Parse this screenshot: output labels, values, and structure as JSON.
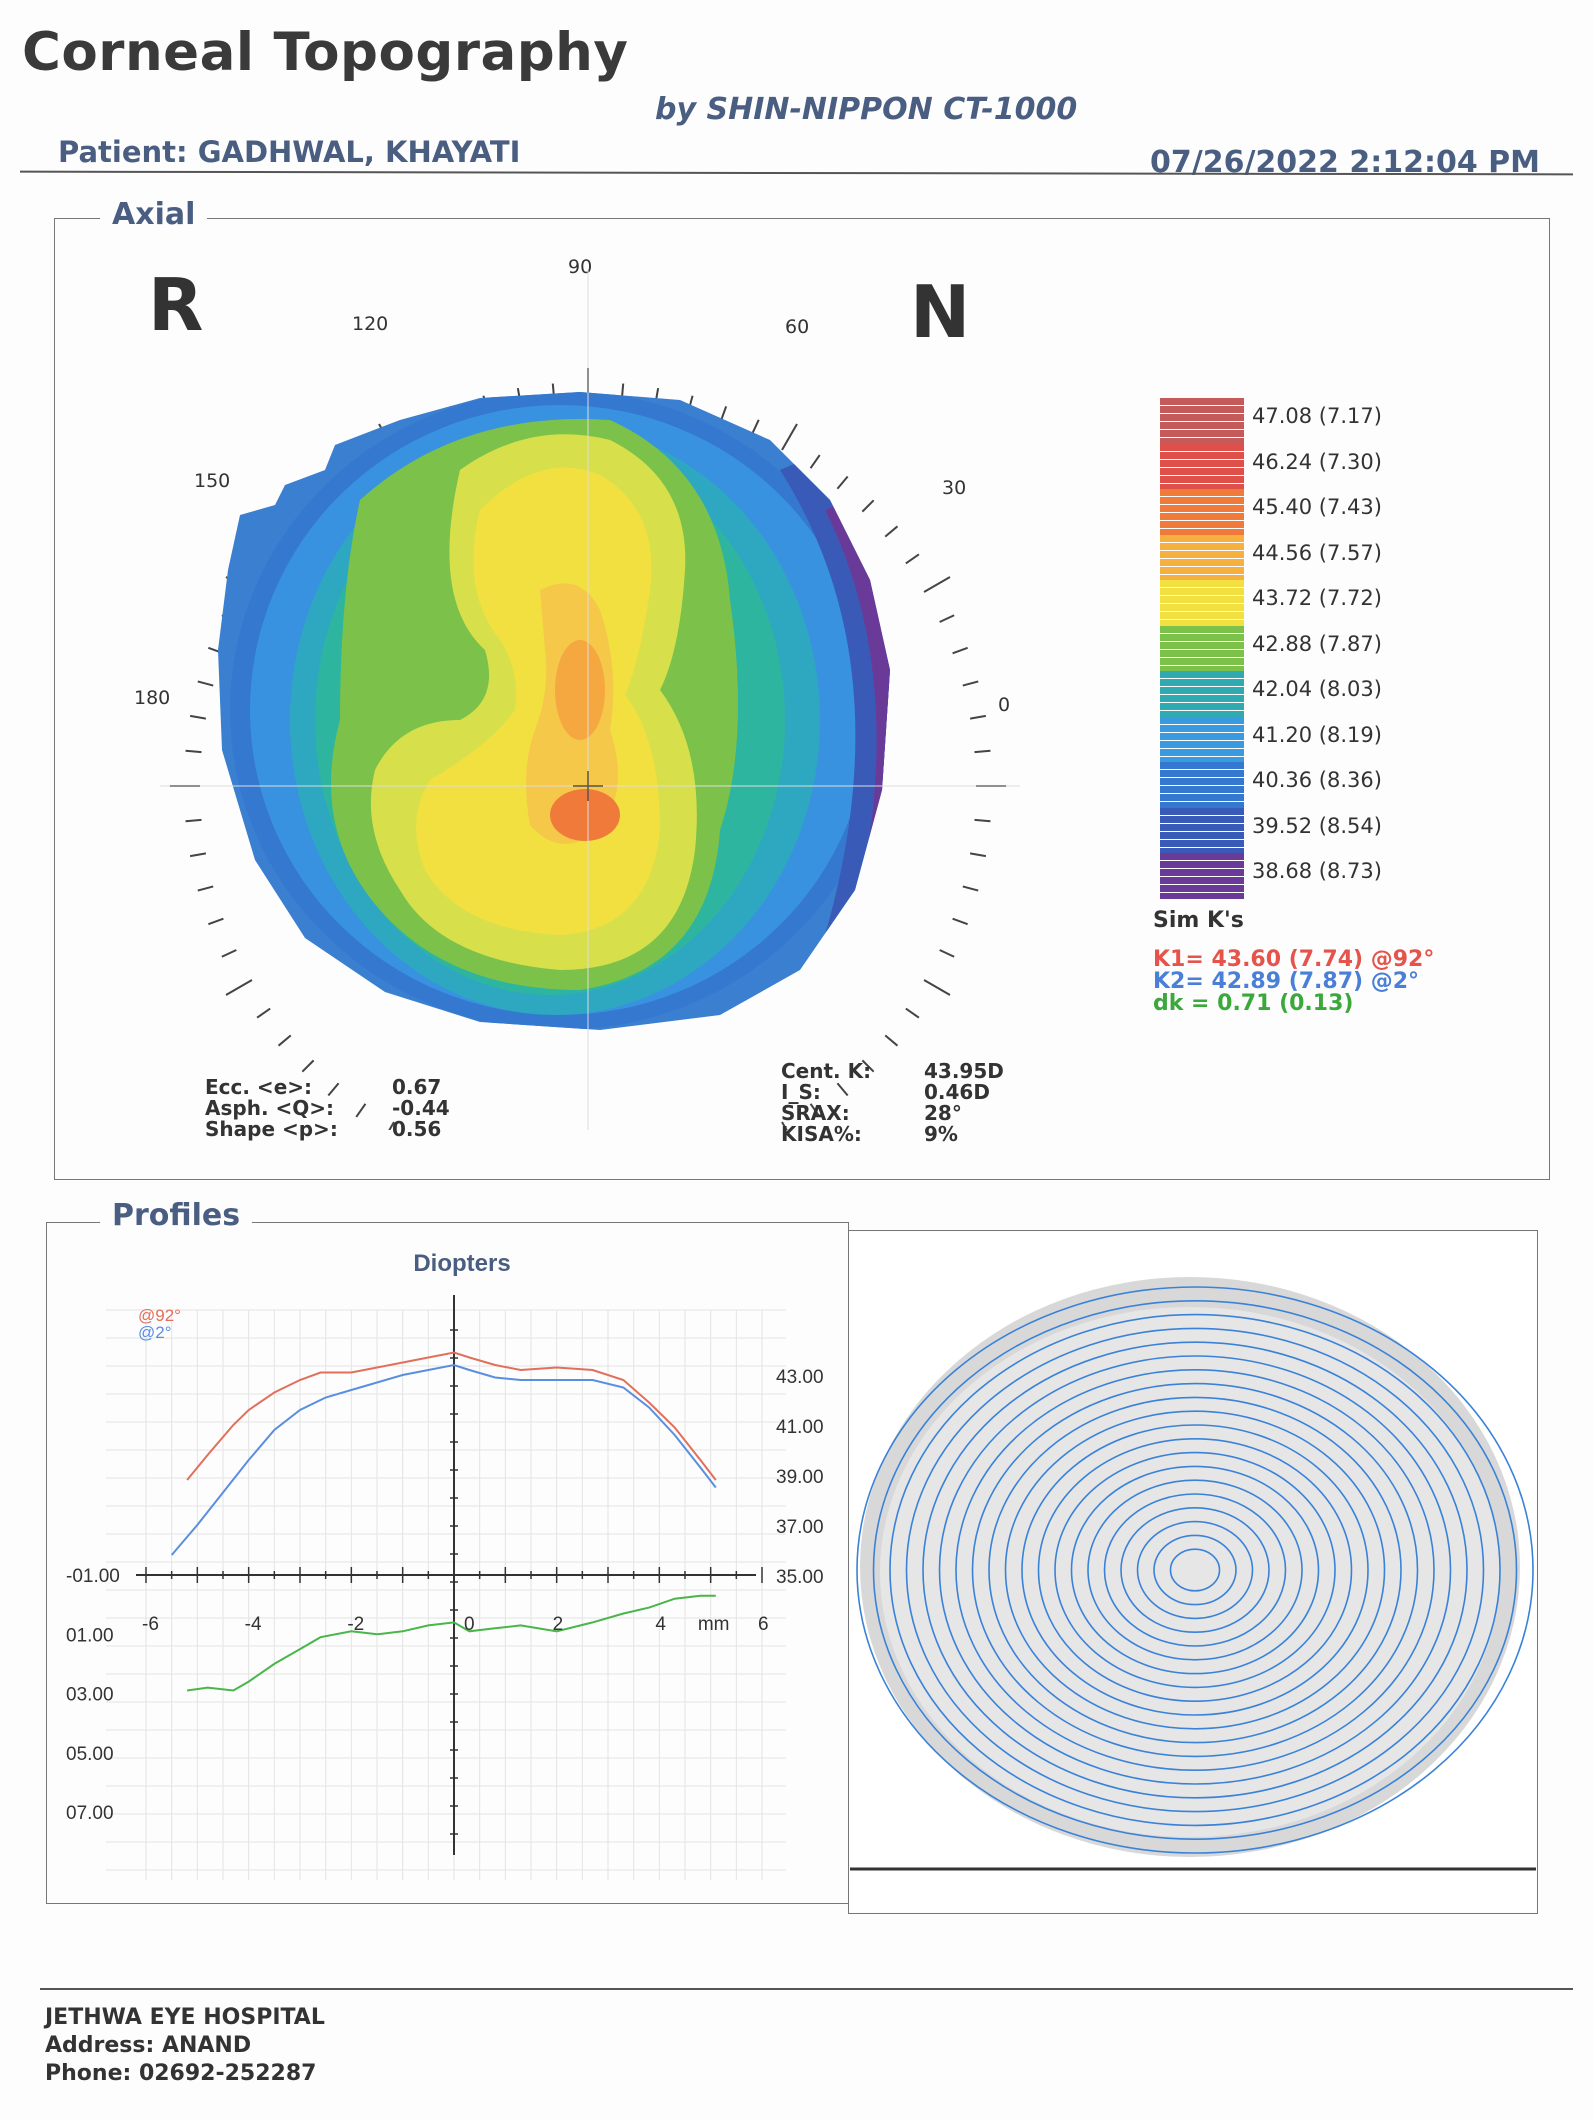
{
  "header": {
    "title": "Corneal Topography",
    "device": "by SHIN-NIPPON CT-1000",
    "patient": "Patient: GADHWAL, KHAYATI",
    "datetime": "07/26/2022 2:12:04 PM"
  },
  "axial": {
    "section_title": "Axial",
    "eye_label": "R",
    "side_label": "N",
    "angle_labels": {
      "a90": "90",
      "a120": "120",
      "a60": "60",
      "a150": "150",
      "a30": "30",
      "a180": "180",
      "a0": "0"
    },
    "legend": [
      {
        "value": "47.08 (7.17)",
        "color": "#c45a5a"
      },
      {
        "value": "46.24 (7.30)",
        "color": "#e0504a"
      },
      {
        "value": "45.40 (7.43)",
        "color": "#f07a3a"
      },
      {
        "value": "44.56 (7.57)",
        "color": "#f5b040"
      },
      {
        "value": "43.72 (7.72)",
        "color": "#f2e040"
      },
      {
        "value": "42.88 (7.87)",
        "color": "#7cc24a"
      },
      {
        "value": "42.04 (8.03)",
        "color": "#2eaab0"
      },
      {
        "value": "41.20 (8.19)",
        "color": "#3a9ae0"
      },
      {
        "value": "40.36 (8.36)",
        "color": "#3578d0"
      },
      {
        "value": "39.52 (8.54)",
        "color": "#3a5ab8"
      },
      {
        "value": "38.68 (8.73)",
        "color": "#6a3a98"
      }
    ],
    "stats_left": {
      "labels": [
        "Ecc. <e>:",
        "Asph. <Q>:",
        "Shape <p>:"
      ],
      "values": [
        "0.67",
        "-0.44",
        "0.56"
      ]
    },
    "stats_right": {
      "labels": [
        "Cent. K:",
        "I_S:",
        "SRAX:",
        "KISA%:"
      ],
      "values": [
        "43.95D",
        "0.46D",
        "28°",
        "9%"
      ]
    },
    "sim_k": {
      "title": "Sim K's",
      "k1": "K1= 43.60 (7.74) @92°",
      "k2": "K2= 42.89 (7.87) @2°",
      "dk": "dk = 0.71 (0.13)",
      "k1_color": "#e5534b",
      "k2_color": "#4a7fd8",
      "dk_color": "#3aa83a"
    }
  },
  "profiles": {
    "section_title": "Profiles",
    "chart_title": "Diopters",
    "legend": [
      "@92°",
      "@2°"
    ],
    "right_ticks": [
      "43.00",
      "41.00",
      "39.00",
      "37.00",
      "35.00"
    ],
    "left_ticks": [
      "-01.00",
      "01.00",
      "03.00",
      "05.00",
      "07.00"
    ],
    "x_ticks": [
      "-6",
      "-4",
      "-2",
      "0",
      "2",
      "4",
      "mm",
      "6"
    ]
  },
  "chart_data": {
    "type": "line",
    "title": "Diopters",
    "xlabel": "mm",
    "xlim": [
      -6,
      6
    ],
    "ylim_right": [
      35,
      44
    ],
    "ylim_left": [
      -1,
      7
    ],
    "series": [
      {
        "name": "@92°",
        "axis": "right",
        "color": "#e0705a",
        "x": [
          -5.2,
          -4.8,
          -4.3,
          -4.0,
          -3.5,
          -3.0,
          -2.6,
          -2.0,
          -1.5,
          -1.0,
          -0.5,
          0.0,
          0.3,
          0.8,
          1.3,
          2.0,
          2.7,
          3.3,
          3.8,
          4.3,
          4.8,
          5.1
        ],
        "y": [
          38.8,
          39.8,
          41.0,
          41.6,
          42.3,
          42.8,
          43.1,
          43.1,
          43.3,
          43.5,
          43.7,
          43.9,
          43.7,
          43.4,
          43.2,
          43.3,
          43.2,
          42.8,
          41.9,
          40.9,
          39.6,
          38.8
        ]
      },
      {
        "name": "@2°",
        "axis": "right",
        "color": "#5a8ee0",
        "x": [
          -5.5,
          -5.0,
          -4.5,
          -4.0,
          -3.5,
          -3.0,
          -2.5,
          -2.0,
          -1.5,
          -1.0,
          -0.5,
          0.0,
          0.3,
          0.8,
          1.3,
          2.0,
          2.7,
          3.3,
          3.8,
          4.3,
          4.8,
          5.1
        ],
        "y": [
          35.8,
          37.0,
          38.3,
          39.6,
          40.8,
          41.6,
          42.1,
          42.4,
          42.7,
          43.0,
          43.2,
          43.4,
          43.2,
          42.9,
          42.8,
          42.8,
          42.8,
          42.5,
          41.7,
          40.6,
          39.3,
          38.5
        ]
      },
      {
        "name": "dk",
        "axis": "left",
        "color": "#4ab54a",
        "x": [
          -5.2,
          -4.8,
          -4.3,
          -4.0,
          -3.5,
          -3.0,
          -2.6,
          -2.0,
          -1.5,
          -1.0,
          -0.5,
          0.0,
          0.3,
          0.8,
          1.3,
          2.0,
          2.7,
          3.3,
          3.8,
          4.3,
          4.8,
          5.1
        ],
        "y": [
          2.9,
          2.8,
          2.9,
          2.6,
          2.0,
          1.5,
          1.1,
          0.9,
          1.0,
          0.9,
          0.7,
          0.6,
          0.9,
          0.8,
          0.7,
          0.9,
          0.6,
          0.3,
          0.1,
          -0.2,
          -0.3,
          -0.3
        ]
      }
    ]
  },
  "footer": {
    "hospital": "JETHWA EYE HOSPITAL",
    "address": "Address: ANAND",
    "phone": "Phone: 02692-252287"
  }
}
